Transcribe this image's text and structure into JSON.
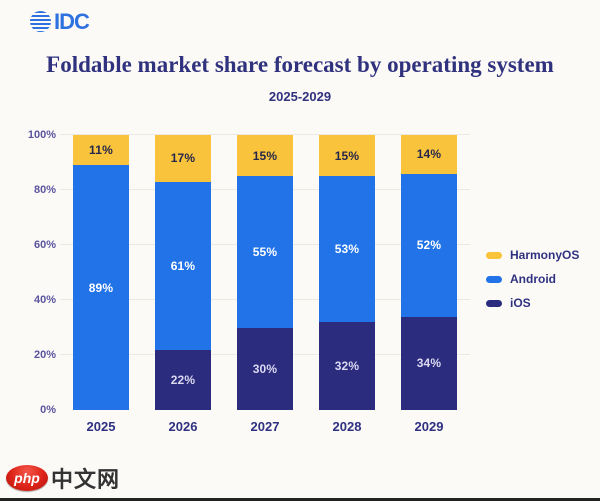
{
  "logo": {
    "text": "IDC",
    "color": "#2E72E2"
  },
  "header": {
    "title": "Foldable market share forecast by operating system",
    "subtitle": "2025-2029"
  },
  "watermark": {
    "badge": "php",
    "text": "中文网"
  },
  "chart_data": {
    "type": "bar",
    "variant": "stacked-100",
    "title": "Foldable market share forecast by operating system",
    "subtitle": "2025-2029",
    "categories": [
      "2025",
      "2026",
      "2027",
      "2028",
      "2029"
    ],
    "series": [
      {
        "name": "iOS",
        "color": "#2B2C7D",
        "label_color": "#DBD9F2",
        "values": [
          0,
          22,
          30,
          32,
          34
        ]
      },
      {
        "name": "Android",
        "color": "#2273E8",
        "label_color": "#FFFFFF",
        "values": [
          89,
          61,
          55,
          53,
          52
        ]
      },
      {
        "name": "HarmonyOS",
        "color": "#F9C43C",
        "label_color": "#26264A",
        "values": [
          11,
          17,
          15,
          15,
          14
        ]
      }
    ],
    "stack_order_bottom_to_top": [
      "iOS",
      "Android",
      "HarmonyOS"
    ],
    "value_suffix": "%",
    "ylim": [
      0,
      100
    ],
    "yticks": [
      {
        "value": 0,
        "label": "0%"
      },
      {
        "value": 20,
        "label": "20%"
      },
      {
        "value": 40,
        "label": "40%"
      },
      {
        "value": 60,
        "label": "60%"
      },
      {
        "value": 80,
        "label": "80%"
      },
      {
        "value": 100,
        "label": "100%"
      }
    ],
    "grid": true,
    "legend_position": "right",
    "legend_order": [
      "HarmonyOS",
      "Android",
      "iOS"
    ]
  }
}
